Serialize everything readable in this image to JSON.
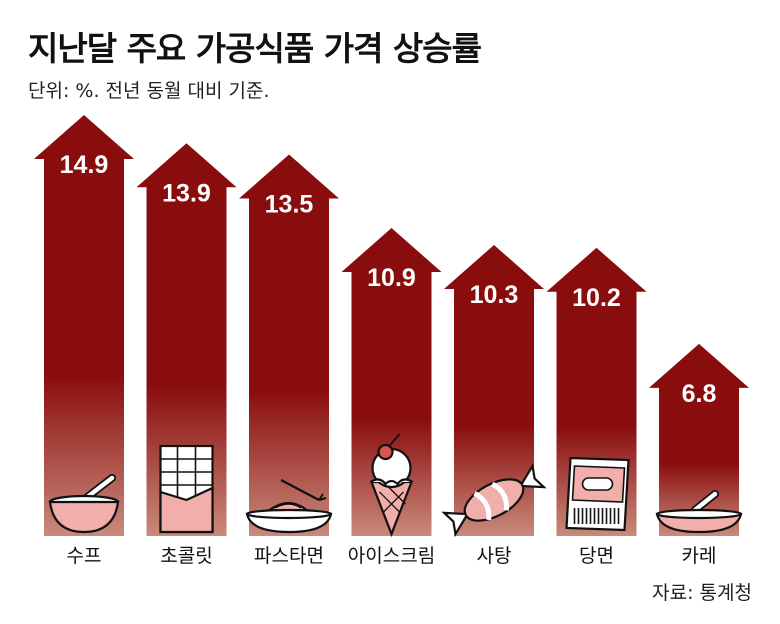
{
  "header": {
    "title": "지난달 주요 가공식품 가격 상승률",
    "subtitle": "단위: %. 전년 동월 대비 기준."
  },
  "footer": {
    "source": "자료: 통계청"
  },
  "colors": {
    "bar_top": "#8a0d0d",
    "bar_bottom": "#c98a7c",
    "icon_fill": "#f2aeaa",
    "icon_stroke": "#111111"
  },
  "chart_data": {
    "type": "bar",
    "title": "지난달 주요 가공식품 가격 상승률",
    "categories": [
      "수프",
      "초콜릿",
      "파스타면",
      "아이스크림",
      "사탕",
      "당면",
      "카레"
    ],
    "values": [
      14.9,
      13.9,
      13.5,
      10.9,
      10.3,
      10.2,
      6.8
    ],
    "value_labels": [
      "14.9",
      "13.9",
      "13.5",
      "10.9",
      "10.3",
      "10.2",
      "6.8"
    ],
    "icons": [
      "bowl-icon",
      "chocolate-bar-icon",
      "pasta-plate-icon",
      "ice-cream-cone-icon",
      "candy-icon",
      "glass-noodle-pack-icon",
      "curry-plate-icon"
    ],
    "ylim": [
      0,
      14.9
    ],
    "xlabel": "",
    "ylabel": "",
    "grid": false
  }
}
